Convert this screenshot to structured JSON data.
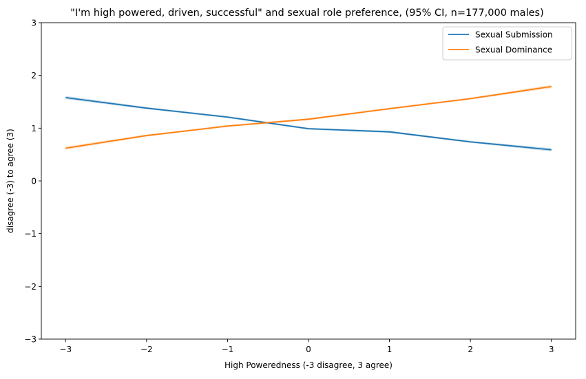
{
  "chart_data": {
    "type": "line",
    "title": "\"I'm high powered, driven, successful\" and sexual role preference, (95% CI, n=177,000 males)",
    "xlabel": "High Poweredness (-3 disagree, 3 agree)",
    "ylabel": "disagree (-3) to agree (3)",
    "x": [
      -3,
      -2,
      -1,
      0,
      1,
      2,
      3
    ],
    "x_tick_labels": [
      "−3",
      "−2",
      "−1",
      "0",
      "1",
      "2",
      "3"
    ],
    "y_tick_values": [
      -3,
      -2,
      -1,
      0,
      1,
      2,
      3
    ],
    "y_tick_labels": [
      "−3",
      "−2",
      "−1",
      "0",
      "1",
      "2",
      "3"
    ],
    "xlim": [
      -3.3,
      3.3
    ],
    "ylim": [
      -3,
      3
    ],
    "grid": false,
    "legend_position": "top-right",
    "series": [
      {
        "name": "Sexual Submission",
        "color": "#1f77b4",
        "values": [
          1.58,
          1.38,
          1.21,
          0.99,
          0.93,
          0.74,
          0.59
        ],
        "ci_half_width": [
          0.03,
          0.02,
          0.02,
          0.02,
          0.02,
          0.02,
          0.03
        ]
      },
      {
        "name": "Sexual Dominance",
        "color": "#ff7f0e",
        "values": [
          0.62,
          0.86,
          1.04,
          1.17,
          1.37,
          1.56,
          1.79
        ],
        "ci_half_width": [
          0.03,
          0.02,
          0.02,
          0.02,
          0.02,
          0.02,
          0.03
        ]
      }
    ]
  }
}
